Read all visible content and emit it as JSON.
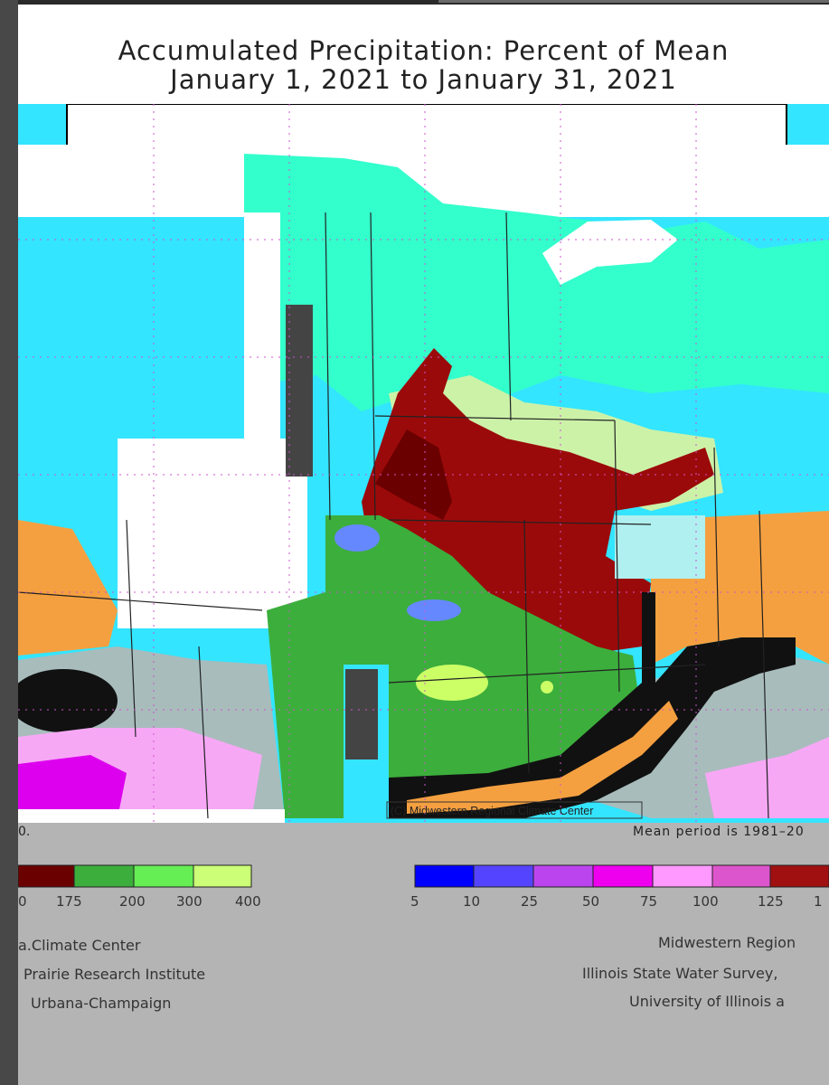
{
  "title_line1": "Accumulated Precipitation: Percent of Mean",
  "title_line2": "January 1, 2021 to January 31, 2021",
  "map": {
    "copyright": "(C) Midwestern Regional Climate Center",
    "colors": {
      "aqua": "#33ffcc",
      "cyan": "#33e5ff",
      "light_yellow": "#ccf2a8",
      "dark_red": "#9b0a0a",
      "maroon": "#6b0000",
      "green": "#3cae3c",
      "light_green": "#ccff66",
      "orange": "#f5a040",
      "black": "#111111",
      "light_pink": "#f7a8f5",
      "magenta": "#dd00ee",
      "blue_purple": "#6688ff",
      "gray_blue": "#a8bcbc",
      "light_cyan": "#b0f0f0",
      "water_white": "#ffffff"
    }
  },
  "footer": {
    "left_note": "0.",
    "mean_period": "Mean period is 1981–20",
    "left_legend": {
      "colors": [
        "#6b0000",
        "#3cae3c",
        "#66ee55",
        "#ccff77"
      ],
      "labels": [
        "0",
        "175",
        "200",
        "300",
        "400"
      ]
    },
    "right_legend": {
      "colors": [
        "#0000ff",
        "#5544ff",
        "#bb44ee",
        "#ee00ee",
        "#ff99ff",
        "#dd55cc",
        "#a01010"
      ],
      "labels": [
        "5",
        "10",
        "25",
        "50",
        "75",
        "100",
        "125",
        "1"
      ]
    },
    "credits_left": [
      "a.Climate Center",
      "Prairie Research Institute",
      "Urbana-Champaign"
    ],
    "credits_right": [
      "Midwestern Region",
      "Illinois State Water Survey,",
      "University of Illinois a"
    ]
  }
}
